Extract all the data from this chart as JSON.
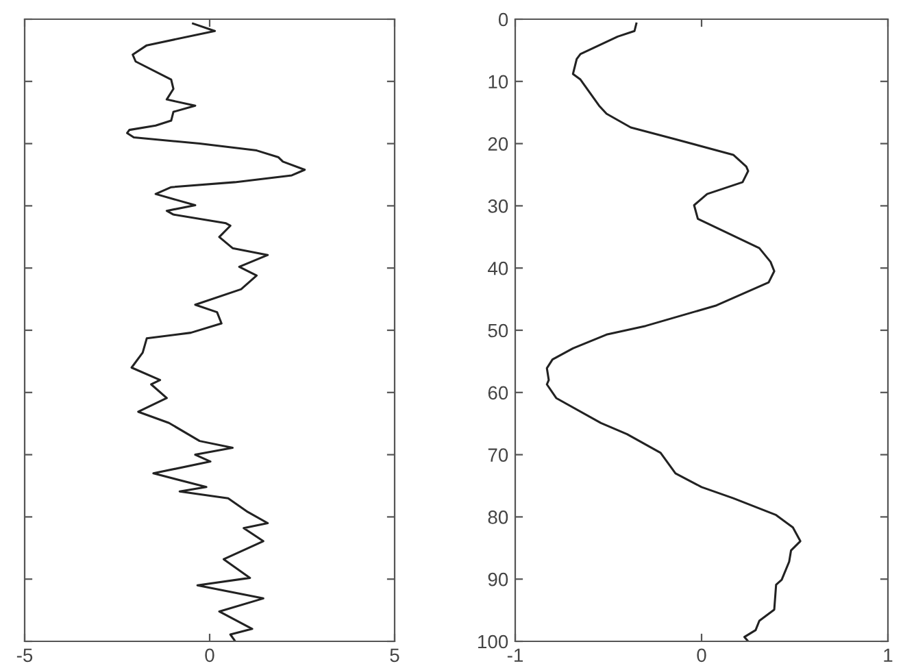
{
  "chart_data": [
    {
      "type": "line",
      "xlim": [
        -5,
        5
      ],
      "xticks": [
        -5,
        0,
        5
      ],
      "ylim": [
        100,
        0
      ],
      "yticks": [
        {
          "value": 0,
          "label": null
        },
        {
          "value": 10,
          "label": null
        },
        {
          "value": 20,
          "label": null
        },
        {
          "value": 30,
          "label": null
        },
        {
          "value": 40,
          "label": null
        },
        {
          "value": 50,
          "label": null
        },
        {
          "value": 60,
          "label": null
        },
        {
          "value": 70,
          "label": null
        },
        {
          "value": 80,
          "label": null
        },
        {
          "value": 90,
          "label": null
        },
        {
          "value": 100,
          "label": null
        }
      ],
      "tick_labels": "x",
      "grid": false,
      "legend": false,
      "series": [
        {
          "color": "#222222",
          "x": [
            -0.45,
            0.14,
            -1.7,
            -2.08,
            -2.0,
            -1.04,
            -0.98,
            -1.16,
            -0.39,
            -0.98,
            -1.04,
            -1.46,
            -2.17,
            -2.23,
            -2.05,
            -0.27,
            1.27,
            1.86,
            1.98,
            2.57,
            2.22,
            0.68,
            -1.04,
            -1.46,
            -0.39,
            -1.16,
            -0.98,
            0.44,
            0.56,
            0.26,
            0.62,
            1.57,
            0.8,
            1.27,
            0.85,
            -0.39,
            0.2,
            0.32,
            -0.51,
            -1.7,
            -1.81,
            -2.11,
            -1.34,
            -1.58,
            -1.16,
            -1.93,
            -1.1,
            -0.27,
            0.62,
            -0.39,
            0.02,
            -1.52,
            -0.09,
            -0.81,
            0.5,
            1.03,
            1.57,
            0.92,
            1.45,
            0.38,
            1.09,
            -0.33,
            1.45,
            0.26,
            1.15,
            0.56,
            0.68
          ],
          "values": [
            0.7,
            1.9,
            4.2,
            5.7,
            6.8,
            9.7,
            11.2,
            12.9,
            13.9,
            14.9,
            16.3,
            17.1,
            17.8,
            18.3,
            19.0,
            20.0,
            21.1,
            22.2,
            22.9,
            24.2,
            25.1,
            26.2,
            27.0,
            28.1,
            29.9,
            30.8,
            31.4,
            32.8,
            33.2,
            35.0,
            36.8,
            37.9,
            39.8,
            41.2,
            43.4,
            45.9,
            47.1,
            48.9,
            50.4,
            51.3,
            53.6,
            56.0,
            58.0,
            58.7,
            60.9,
            63.1,
            64.9,
            67.8,
            68.9,
            70.0,
            71.1,
            73.0,
            75.2,
            75.9,
            77.0,
            79.2,
            81.0,
            81.8,
            83.9,
            86.8,
            89.8,
            91.0,
            93.1,
            95.2,
            98.0,
            98.9,
            99.9
          ]
        }
      ]
    },
    {
      "type": "line",
      "xlim": [
        -1,
        1
      ],
      "xticks": [
        -1,
        0,
        1
      ],
      "ylim": [
        100,
        0
      ],
      "yticks": [
        0,
        10,
        20,
        30,
        40,
        50,
        60,
        70,
        80,
        90,
        100
      ],
      "grid": false,
      "legend": false,
      "series": [
        {
          "color": "#222222",
          "x": [
            -0.35,
            -0.36,
            -0.45,
            -0.65,
            -0.67,
            -0.69,
            -0.65,
            -0.55,
            -0.51,
            -0.38,
            -0.14,
            0.17,
            0.24,
            0.25,
            0.22,
            0.03,
            -0.04,
            -0.02,
            0.31,
            0.37,
            0.39,
            0.36,
            0.08,
            -0.3,
            -0.51,
            -0.69,
            -0.8,
            -0.83,
            -0.82,
            -0.83,
            -0.78,
            -0.54,
            -0.4,
            -0.22,
            -0.14,
            0.0,
            0.17,
            0.4,
            0.49,
            0.53,
            0.48,
            0.47,
            0.43,
            0.4,
            0.39,
            0.31,
            0.29,
            0.23,
            0.25
          ],
          "values": [
            0.7,
            1.9,
            2.8,
            5.6,
            6.4,
            8.8,
            9.7,
            13.9,
            15.2,
            17.4,
            19.3,
            21.8,
            23.7,
            24.4,
            26.2,
            28.1,
            29.9,
            32.1,
            36.8,
            39.0,
            40.5,
            42.3,
            46.0,
            49.3,
            50.7,
            52.9,
            54.7,
            56.1,
            58.0,
            58.7,
            60.9,
            64.9,
            66.7,
            69.7,
            73.0,
            75.2,
            77.0,
            79.7,
            81.7,
            83.9,
            85.4,
            87.2,
            90.1,
            90.9,
            94.9,
            96.7,
            98.2,
            99.3,
            100
          ]
        }
      ]
    }
  ]
}
